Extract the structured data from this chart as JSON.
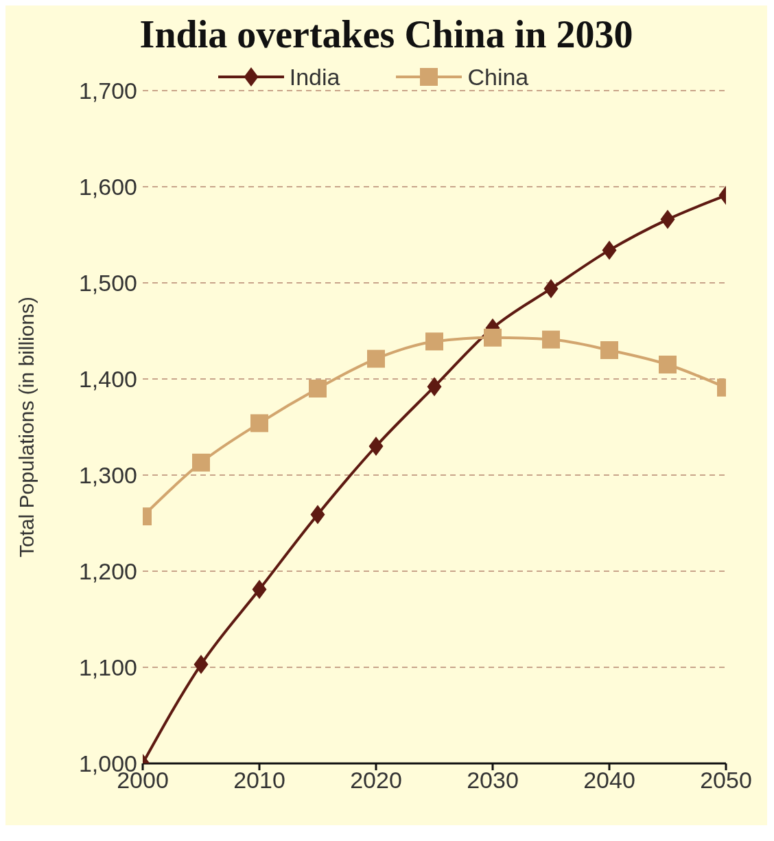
{
  "chart_data": {
    "type": "line",
    "title": "India overtakes China in 2030",
    "ylabel": "Total Populations (in billions)",
    "x": [
      2000,
      2005,
      2010,
      2015,
      2020,
      2025,
      2030,
      2035,
      2040,
      2045,
      2050
    ],
    "series": [
      {
        "name": "India",
        "color": "#5e1a12",
        "marker": "diamond",
        "values": [
          1000,
          1103,
          1181,
          1259,
          1330,
          1392,
          1453,
          1494,
          1534,
          1566,
          1591
        ]
      },
      {
        "name": "China",
        "color": "#d2a56e",
        "marker": "square",
        "values": [
          1257,
          1313,
          1354,
          1390,
          1421,
          1439,
          1443,
          1441,
          1430,
          1415,
          1391
        ]
      }
    ],
    "xlim": [
      2000,
      2050
    ],
    "xticks": [
      2000,
      2010,
      2020,
      2030,
      2040,
      2050
    ],
    "ylim": [
      1000,
      1700
    ],
    "yticks": [
      {
        "value": 1000,
        "label": "1,000"
      },
      {
        "value": 1100,
        "label": "1,100"
      },
      {
        "value": 1200,
        "label": "1,200"
      },
      {
        "value": 1300,
        "label": "1,300"
      },
      {
        "value": 1400,
        "label": "1,400"
      },
      {
        "value": 1500,
        "label": "1,500"
      },
      {
        "value": 1600,
        "label": "1,600"
      },
      {
        "value": 1700,
        "label": "1,700"
      }
    ],
    "grid": "y",
    "legend": "top",
    "line_style": "solid"
  }
}
